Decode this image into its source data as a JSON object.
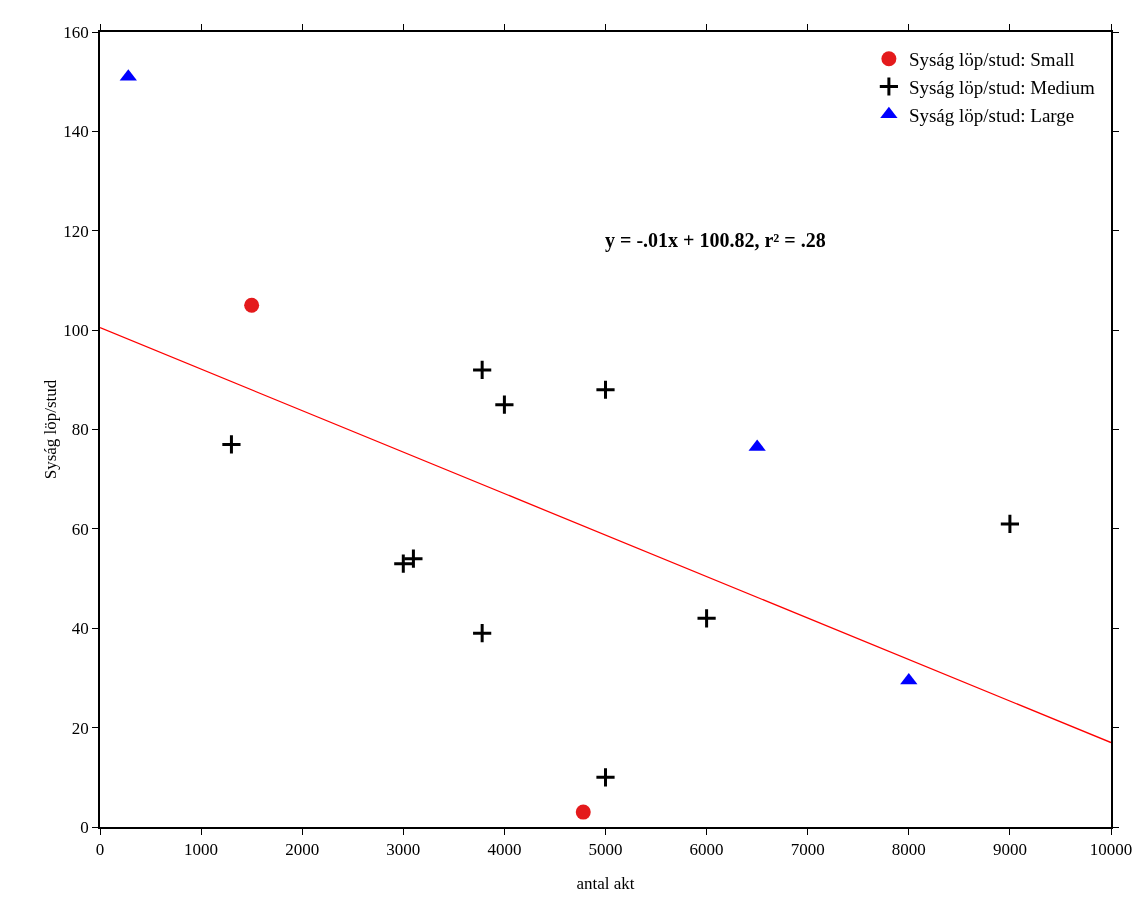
{
  "chart_data": {
    "type": "scatter",
    "xlabel": "antal akt",
    "ylabel": "Syság löp/stud",
    "xlim": [
      0,
      10000
    ],
    "xticks": [
      0,
      1000,
      2000,
      3000,
      4000,
      5000,
      6000,
      7000,
      8000,
      9000,
      10000
    ],
    "ylim": [
      0,
      160
    ],
    "yticks": [
      0,
      20,
      40,
      60,
      80,
      100,
      120,
      140,
      160
    ],
    "grid": false,
    "legend": "top right",
    "annotations": [
      "y = -.01x + 100.82, r² = .28"
    ],
    "series": [
      {
        "name": "Syság löp/stud: Small",
        "color": "#e41a1c",
        "marker": "circle",
        "x": [
          1500,
          4780
        ],
        "values": [
          105,
          3
        ]
      },
      {
        "name": "Syság löp/stud: Medium",
        "color": "#000000",
        "marker": "cross",
        "x": [
          1300,
          3780,
          4000,
          5000,
          3000,
          3100,
          3780,
          6000,
          9000,
          5000
        ],
        "values": [
          77,
          92,
          85,
          88,
          53,
          54,
          39,
          42,
          61,
          10
        ]
      },
      {
        "name": "Syság löp/stud: Large",
        "color": "#0000ff",
        "marker": "triangle",
        "x": [
          280,
          6500,
          8000
        ],
        "values": [
          151,
          76.5,
          29.5
        ]
      },
      {
        "type": "line",
        "color": "#ff0000",
        "marker": "none",
        "x": [
          0,
          10000
        ],
        "values": [
          100.5,
          17
        ]
      }
    ]
  }
}
